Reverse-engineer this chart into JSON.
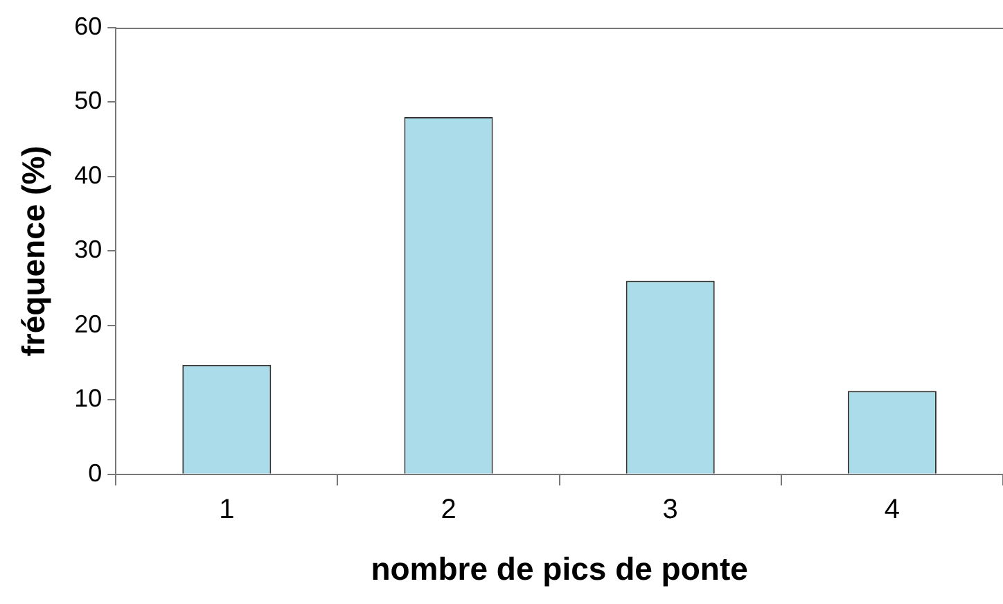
{
  "chart_data": {
    "type": "bar",
    "xlabel": "nombre de pics de ponte",
    "ylabel": "fréquence (%)",
    "categories": [
      "1",
      "2",
      "3",
      "4"
    ],
    "values": [
      14.7,
      48,
      26,
      11.2
    ],
    "color": "#aadde9",
    "ylim": [
      0,
      60
    ],
    "yticks": [
      0,
      10,
      20,
      30,
      40,
      50,
      60
    ],
    "grid": false,
    "legend": false
  }
}
